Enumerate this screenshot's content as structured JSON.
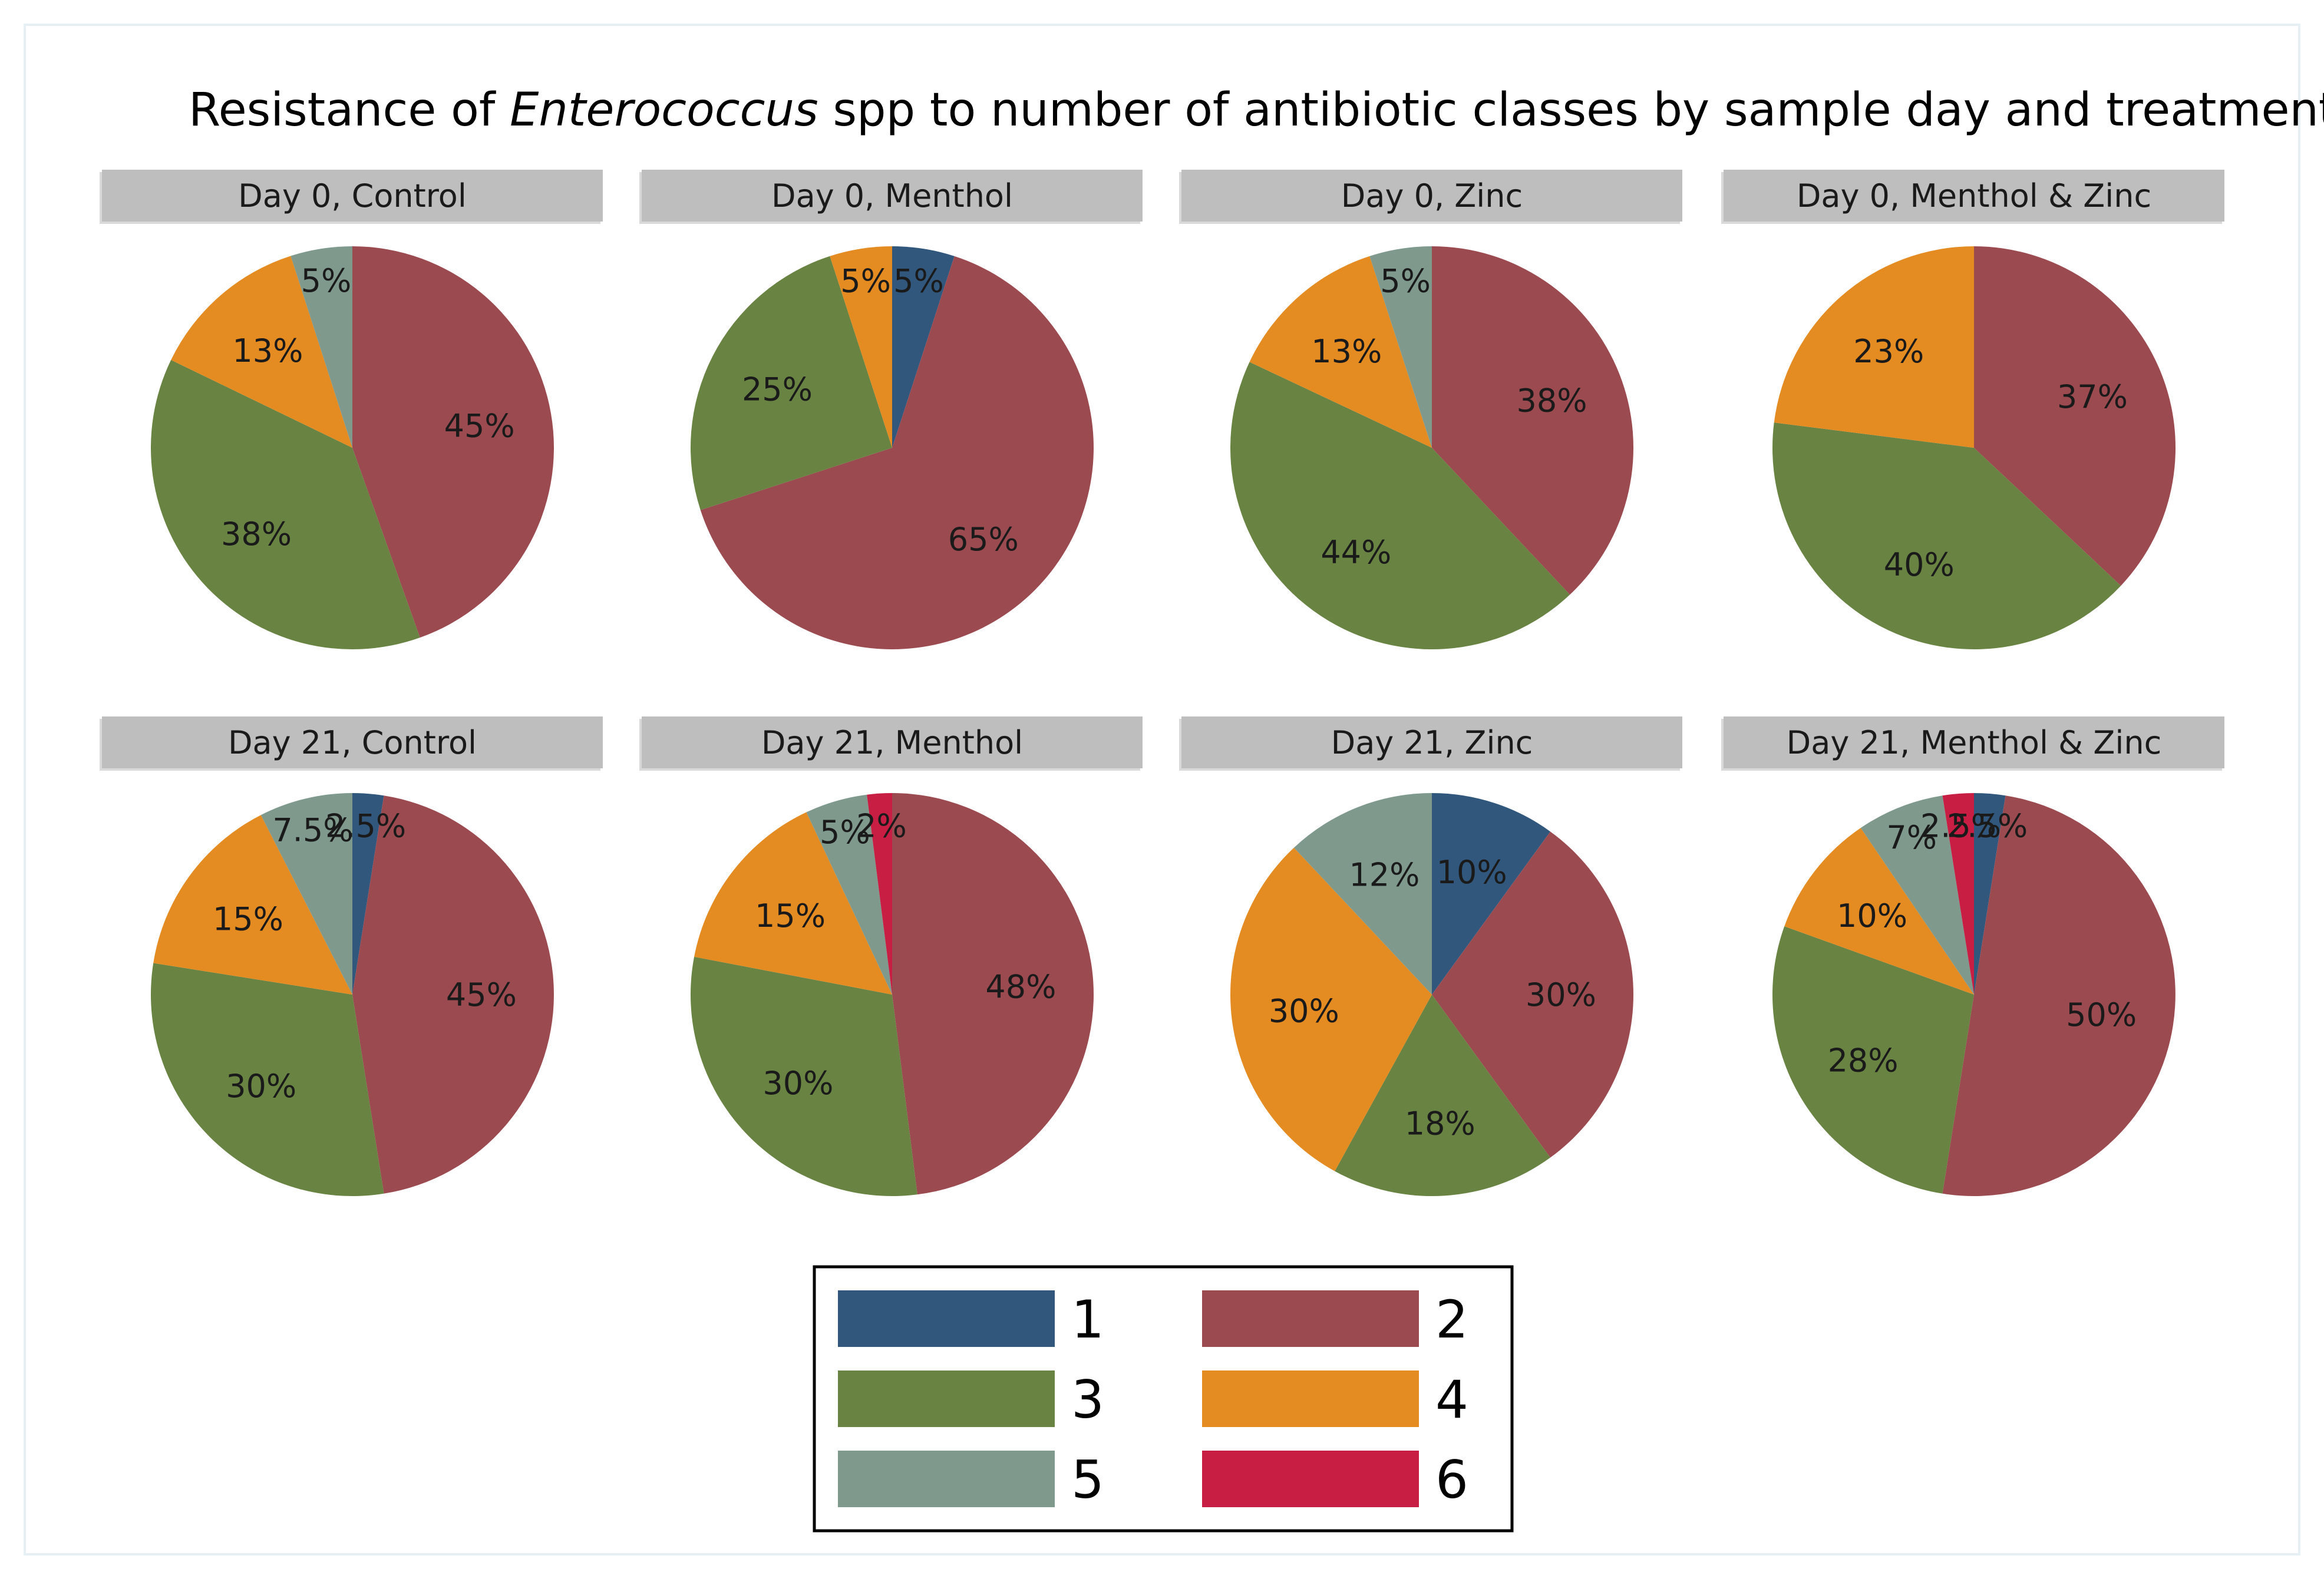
{
  "chart_data": {
    "type": "pie",
    "title": {
      "prefix": "Resistance of ",
      "italic": "Enterococcus",
      "suffix": " spp to number of antibiotic classes by sample day and treatment"
    },
    "legend": {
      "placement": "bottom-center",
      "items": [
        {
          "label": "1",
          "color": "#31577d"
        },
        {
          "label": "2",
          "color": "#9b4a50"
        },
        {
          "label": "3",
          "color": "#688342"
        },
        {
          "label": "4",
          "color": "#e48b22"
        },
        {
          "label": "5",
          "color": "#7f9a8d"
        },
        {
          "label": "6",
          "color": "#c81e44"
        }
      ]
    },
    "panels": [
      {
        "title": "Day 0, Control",
        "slices": [
          {
            "category": "1",
            "value": 0,
            "label": ""
          },
          {
            "category": "2",
            "value": 45,
            "label": "45%"
          },
          {
            "category": "3",
            "value": 38,
            "label": "38%"
          },
          {
            "category": "4",
            "value": 13,
            "label": "13%"
          },
          {
            "category": "5",
            "value": 5,
            "label": "5%"
          }
        ]
      },
      {
        "title": "Day 0, Menthol",
        "slices": [
          {
            "category": "1",
            "value": 5,
            "label": "5%"
          },
          {
            "category": "2",
            "value": 65,
            "label": "65%"
          },
          {
            "category": "3",
            "value": 25,
            "label": "25%"
          },
          {
            "category": "4",
            "value": 5,
            "label": "5%"
          }
        ]
      },
      {
        "title": "Day 0, Zinc",
        "slices": [
          {
            "category": "2",
            "value": 38,
            "label": "38%"
          },
          {
            "category": "3",
            "value": 44,
            "label": "44%"
          },
          {
            "category": "4",
            "value": 13,
            "label": "13%"
          },
          {
            "category": "5",
            "value": 5,
            "label": "5%"
          }
        ]
      },
      {
        "title": "Day 0, Menthol & Zinc",
        "slices": [
          {
            "category": "2",
            "value": 37,
            "label": "37%"
          },
          {
            "category": "3",
            "value": 40,
            "label": "40%"
          },
          {
            "category": "4",
            "value": 23,
            "label": "23%"
          }
        ]
      },
      {
        "title": "Day 21, Control",
        "slices": [
          {
            "category": "1",
            "value": 2.5,
            "label": "2.5%"
          },
          {
            "category": "2",
            "value": 45,
            "label": "45%"
          },
          {
            "category": "3",
            "value": 30,
            "label": "30%"
          },
          {
            "category": "4",
            "value": 15,
            "label": "15%"
          },
          {
            "category": "5",
            "value": 7.5,
            "label": "7.5%"
          }
        ]
      },
      {
        "title": "Day 21, Menthol",
        "slices": [
          {
            "category": "2",
            "value": 48,
            "label": "48%"
          },
          {
            "category": "3",
            "value": 30,
            "label": "30%"
          },
          {
            "category": "4",
            "value": 15,
            "label": "15%"
          },
          {
            "category": "5",
            "value": 5,
            "label": "5%"
          },
          {
            "category": "6",
            "value": 2,
            "label": "2%"
          }
        ]
      },
      {
        "title": "Day 21, Zinc",
        "slices": [
          {
            "category": "1",
            "value": 10,
            "label": "10%"
          },
          {
            "category": "2",
            "value": 30,
            "label": "30%"
          },
          {
            "category": "3",
            "value": 18,
            "label": "18%"
          },
          {
            "category": "4",
            "value": 30,
            "label": "30%"
          },
          {
            "category": "5",
            "value": 12,
            "label": "12%"
          }
        ]
      },
      {
        "title": "Day 21, Menthol & Zinc",
        "slices": [
          {
            "category": "1",
            "value": 2.5,
            "label": "2.5%"
          },
          {
            "category": "2",
            "value": 50,
            "label": "50%"
          },
          {
            "category": "3",
            "value": 28,
            "label": "28%"
          },
          {
            "category": "4",
            "value": 10,
            "label": "10%"
          },
          {
            "category": "5",
            "value": 7,
            "label": "7%"
          },
          {
            "category": "6",
            "value": 2.5,
            "label": "2.5%"
          }
        ]
      }
    ]
  }
}
